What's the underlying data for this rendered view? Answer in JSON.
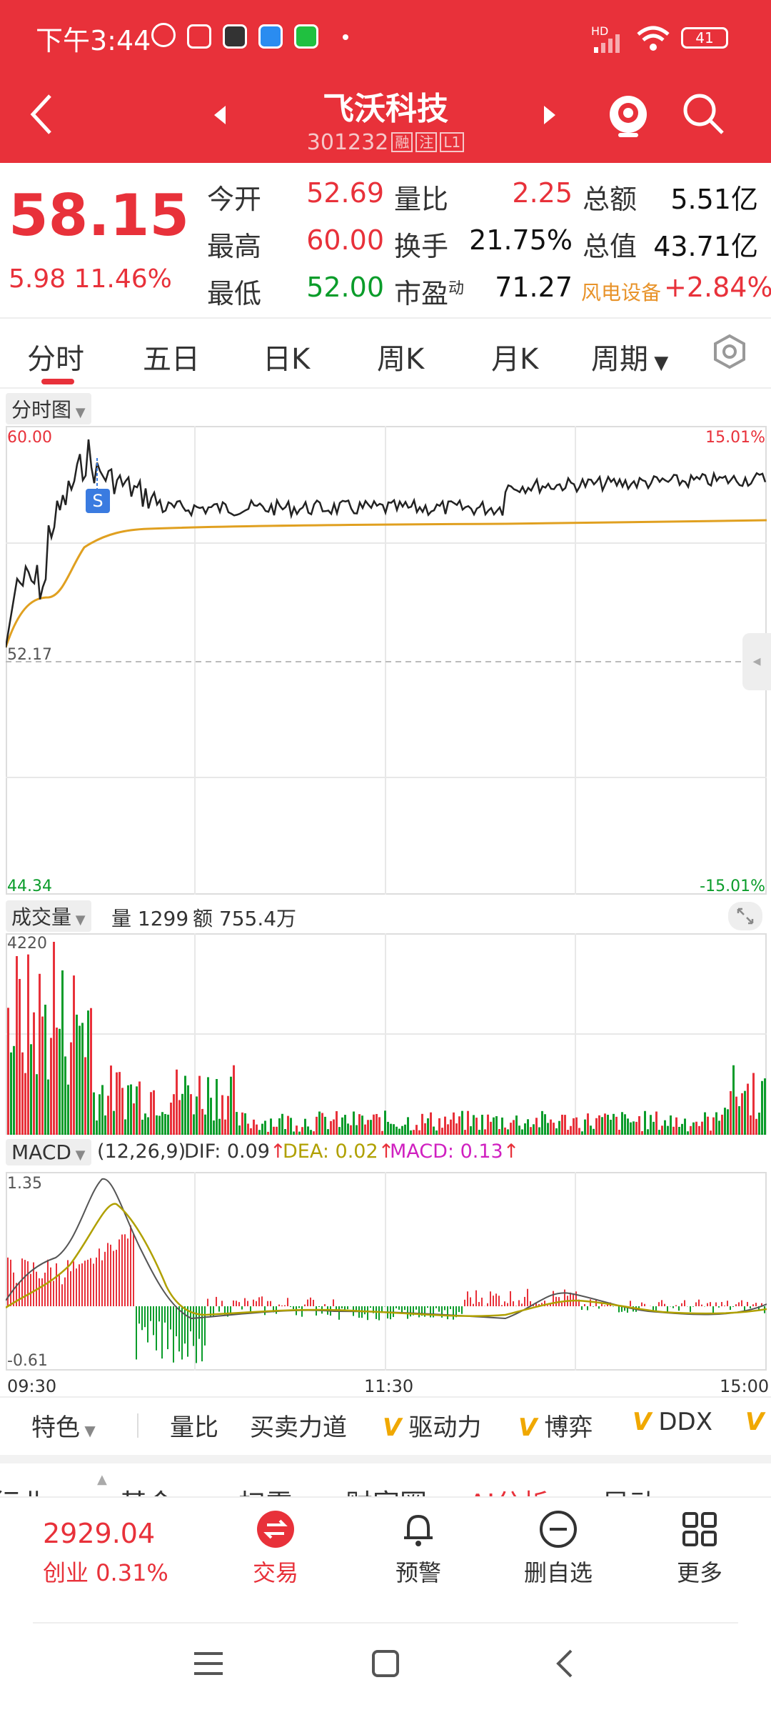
{
  "status": {
    "time": "下午3:44",
    "battery": "41",
    "signal_label": "HD"
  },
  "header": {
    "title": "飞沃科技",
    "code": "301232",
    "tags": [
      "融",
      "注",
      "L1"
    ]
  },
  "quote": {
    "price": "58.15",
    "change": "5.98 11.46%",
    "rows": [
      [
        {
          "label": "今开",
          "value": "52.69",
          "color": "red"
        },
        {
          "label": "量比",
          "value": "2.25",
          "color": "red"
        },
        {
          "label": "总额",
          "value": "5.51亿",
          "color": "dark"
        }
      ],
      [
        {
          "label": "最高",
          "value": "60.00",
          "color": "red"
        },
        {
          "label": "换手",
          "value": "21.75%",
          "color": "dark"
        },
        {
          "label": "总值",
          "value": "43.71亿",
          "color": "dark"
        }
      ],
      [
        {
          "label": "最低",
          "value": "52.00",
          "color": "green"
        },
        {
          "label": "市盈",
          "sup": "动",
          "value": "71.27",
          "color": "dark"
        },
        {
          "label": "风电设备",
          "value": "+2.84%",
          "color": "red"
        }
      ]
    ]
  },
  "tabs": [
    "分时",
    "五日",
    "日K",
    "周K",
    "月K",
    "周期"
  ],
  "price_chart": {
    "label": "分时图",
    "y_max": "60.00",
    "y_ref": "52.17",
    "y_min": "44.34",
    "pct_max": "15.01%",
    "pct_min": "-15.01%",
    "marker": "S"
  },
  "volume_chart": {
    "label": "成交量",
    "vol_text": "量 1299",
    "amount_text": "额 755.4万",
    "y_max": "4220"
  },
  "macd_chart": {
    "label": "MACD",
    "params": "(12,26,9)",
    "dif": "DIF: 0.09",
    "dea": "DEA: 0.02",
    "macd": "MACD: 0.13",
    "y_max": "1.35",
    "y_min": "-0.61",
    "t_start": "09:30",
    "t_mid": "11:30",
    "t_end": "15:00"
  },
  "indicators": [
    "特色",
    "量比",
    "买卖力道",
    "驱动力",
    "博弈",
    "DDX"
  ],
  "sub_tabs": [
    "行业",
    "基金",
    "扫雷",
    "财富圈",
    "AI分析",
    "异动"
  ],
  "bottom_nav": {
    "index_value": "2929.04",
    "index_label": "创业 0.31%",
    "items": [
      "交易",
      "预警",
      "删自选",
      "更多"
    ]
  },
  "colors": {
    "accent": "#e8313a",
    "up": "#e8313a",
    "down": "#0a9c2a",
    "avg_line": "#e0a020",
    "macd_pink": "#d020c0",
    "dea_olive": "#b0a000"
  }
}
